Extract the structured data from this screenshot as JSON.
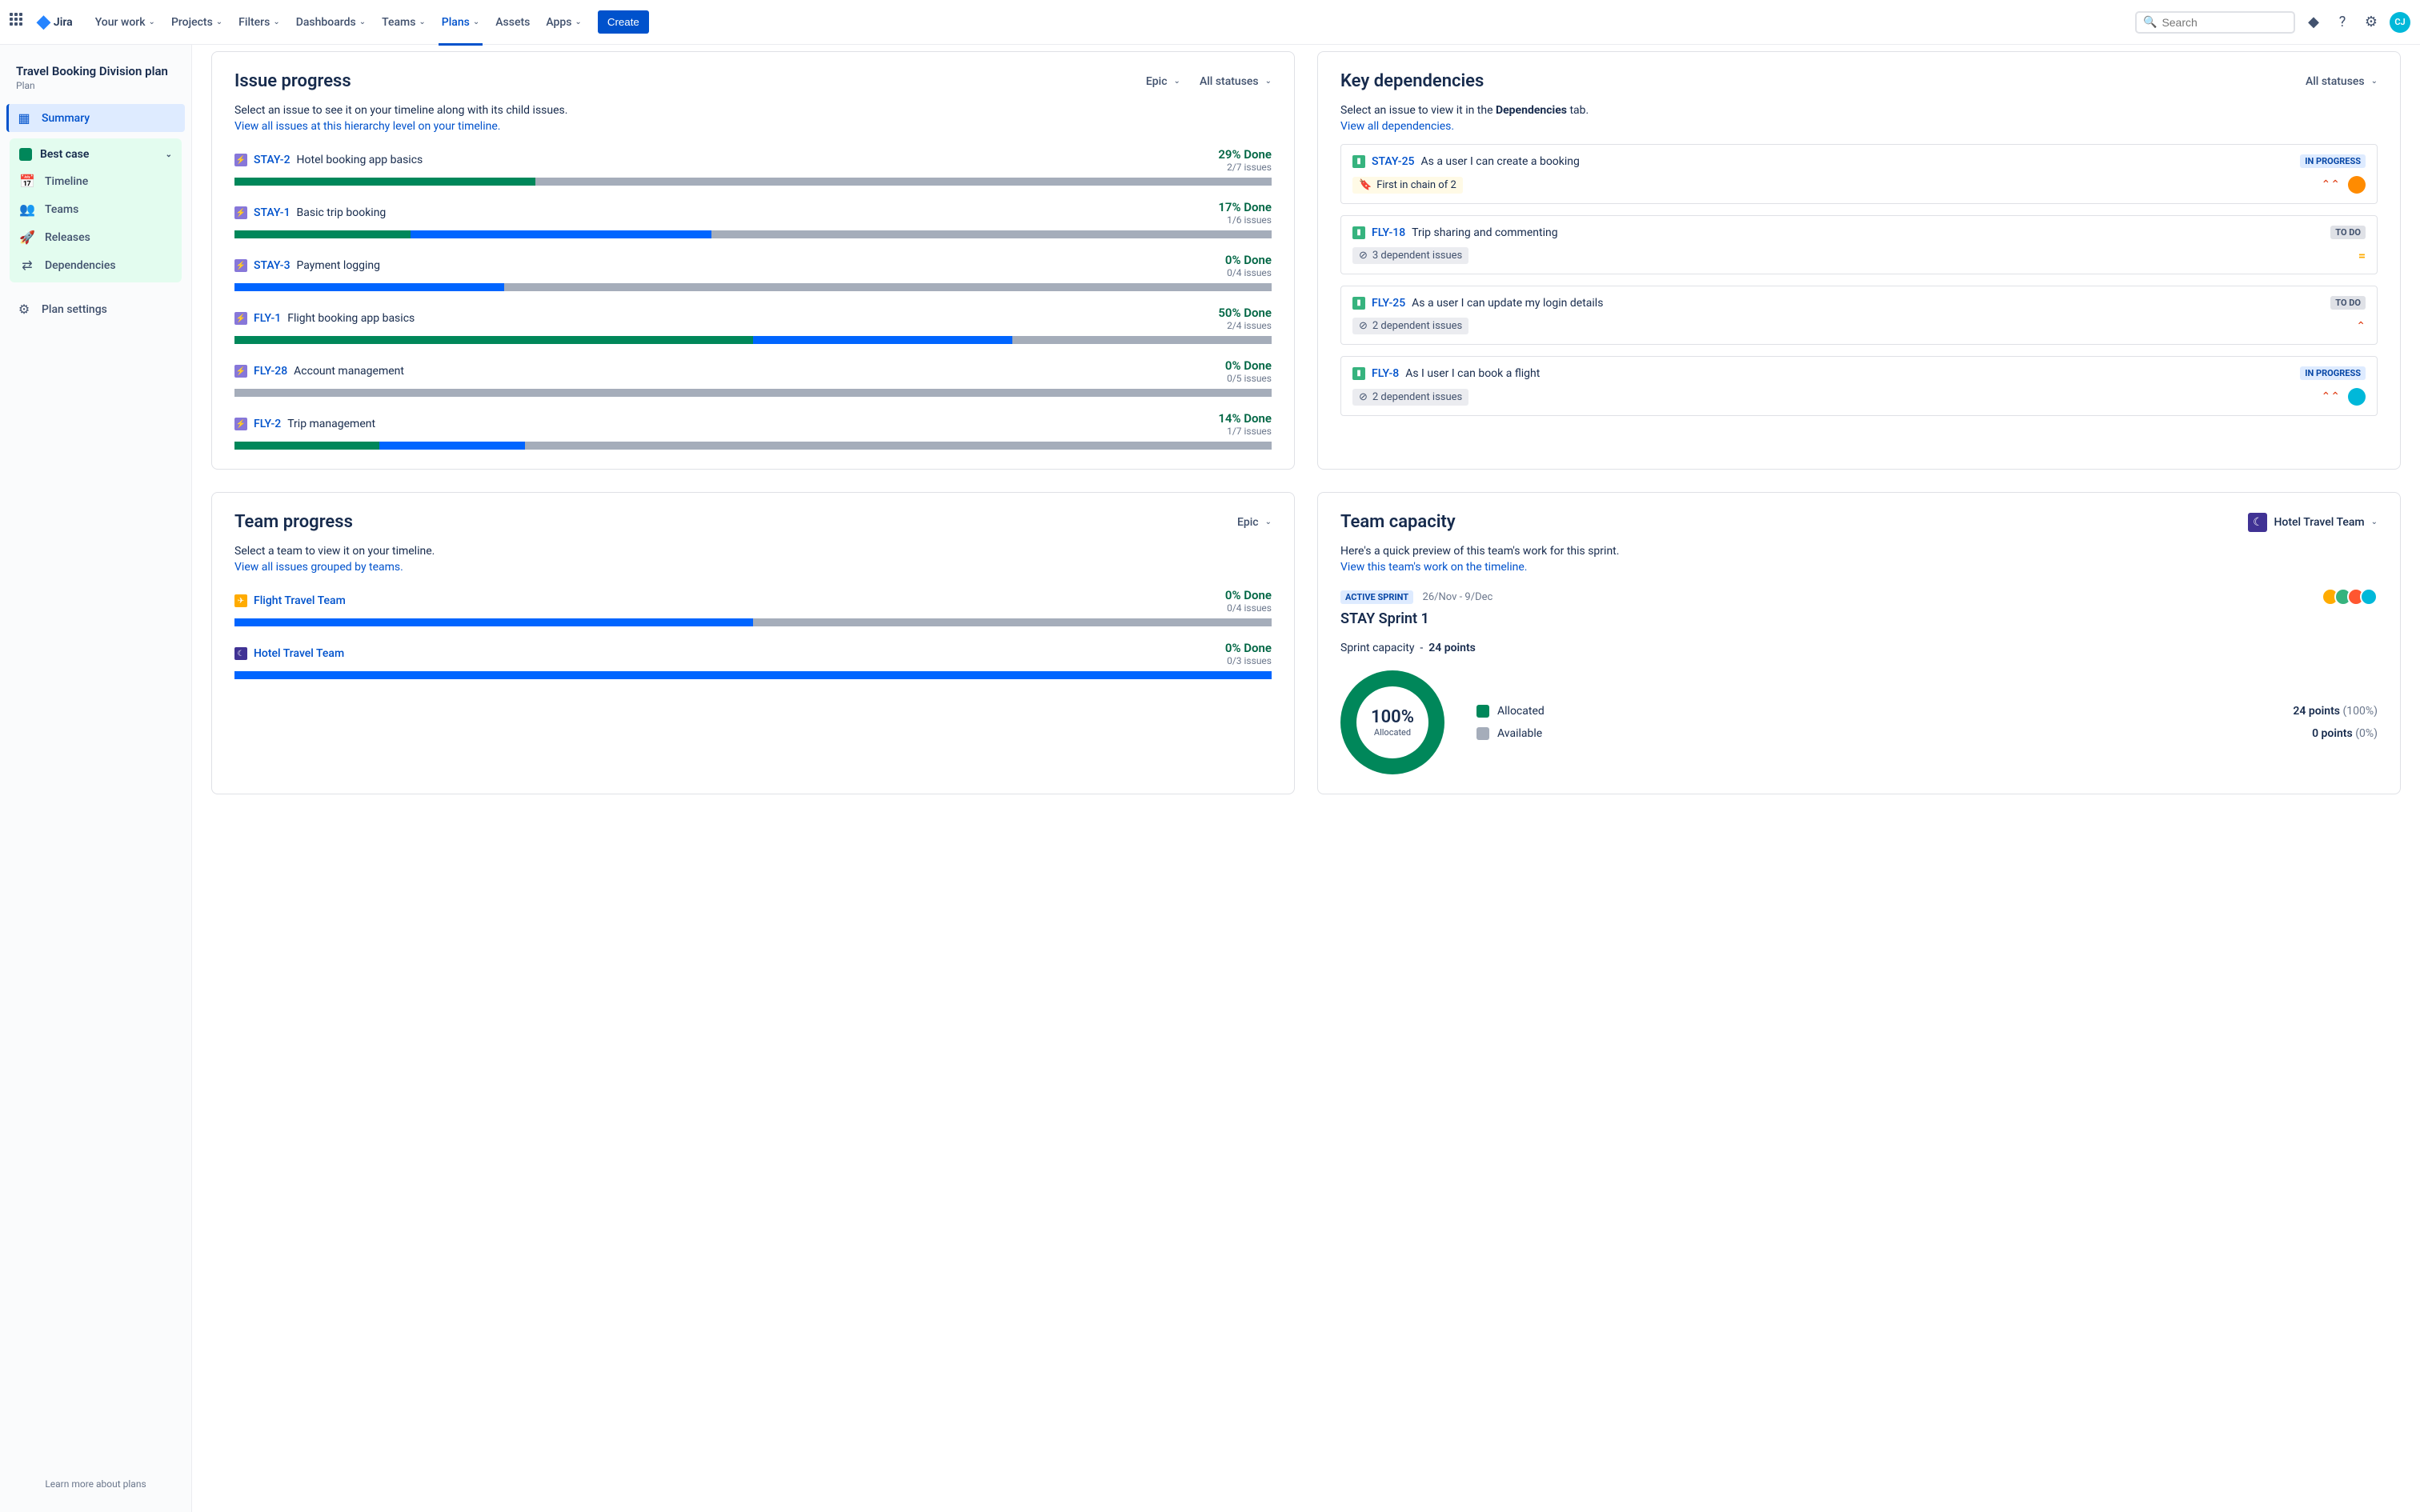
{
  "nav": {
    "product": "Jira",
    "items": [
      "Your work",
      "Projects",
      "Filters",
      "Dashboards",
      "Teams",
      "Plans",
      "Assets",
      "Apps"
    ],
    "activeIndex": 5,
    "plainIndex": 6,
    "create": "Create",
    "searchPlaceholder": "Search",
    "avatarInitials": "CJ"
  },
  "sidebar": {
    "planTitle": "Travel Booking Division plan",
    "planSub": "Plan",
    "summary": "Summary",
    "scenario": "Best case",
    "items": [
      "Timeline",
      "Teams",
      "Releases",
      "Dependencies"
    ],
    "settings": "Plan settings",
    "footer": "Learn more about plans"
  },
  "issueProgress": {
    "title": "Issue progress",
    "filterLevel": "Epic",
    "filterStatus": "All statuses",
    "desc": "Select an issue to see it on your timeline along with its child issues.",
    "link": "View all issues at this hierarchy level on your timeline.",
    "issues": [
      {
        "key": "STAY-2",
        "title": "Hotel booking app basics",
        "pct": "29% Done",
        "count": "2/7 issues",
        "green": 29,
        "blue": 0
      },
      {
        "key": "STAY-1",
        "title": "Basic trip booking",
        "pct": "17% Done",
        "count": "1/6 issues",
        "green": 17,
        "blue": 29
      },
      {
        "key": "STAY-3",
        "title": "Payment logging",
        "pct": "0% Done",
        "count": "0/4 issues",
        "green": 0,
        "blue": 26
      },
      {
        "key": "FLY-1",
        "title": "Flight booking app basics",
        "pct": "50% Done",
        "count": "2/4 issues",
        "green": 50,
        "blue": 25
      },
      {
        "key": "FLY-28",
        "title": "Account management",
        "pct": "0% Done",
        "count": "0/5 issues",
        "green": 0,
        "blue": 0
      },
      {
        "key": "FLY-2",
        "title": "Trip management",
        "pct": "14% Done",
        "count": "1/7 issues",
        "green": 14,
        "blue": 14
      }
    ]
  },
  "deps": {
    "title": "Key dependencies",
    "filterStatus": "All statuses",
    "descPrefix": "Select an issue to view it in the ",
    "descBold": "Dependencies",
    "descSuffix": " tab.",
    "link": "View all dependencies.",
    "items": [
      {
        "key": "STAY-25",
        "title": "As a user I can create a booking",
        "status": "IN PROGRESS",
        "statusClass": "lz-inprogress",
        "badge": "First in chain of 2",
        "badgeFirst": true,
        "prio": "highest",
        "avatar": "#FF8B00"
      },
      {
        "key": "FLY-18",
        "title": "Trip sharing and commenting",
        "status": "TO DO",
        "statusClass": "lz-todo",
        "badge": "3 dependent issues",
        "badgeFirst": false,
        "prio": "medium",
        "avatar": null
      },
      {
        "key": "FLY-25",
        "title": "As a user I can update my login details",
        "status": "TO DO",
        "statusClass": "lz-todo",
        "badge": "2 dependent issues",
        "badgeFirst": false,
        "prio": "high",
        "avatar": null
      },
      {
        "key": "FLY-8",
        "title": "As I user I can book a flight",
        "status": "IN PROGRESS",
        "statusClass": "lz-inprogress",
        "badge": "2 dependent issues",
        "badgeFirst": false,
        "prio": "highest",
        "avatar": "#00B8D9"
      }
    ]
  },
  "teamProgress": {
    "title": "Team progress",
    "filterLevel": "Epic",
    "desc": "Select a team to view it on your timeline.",
    "link": "View all issues grouped by teams.",
    "teams": [
      {
        "name": "Flight Travel Team",
        "pct": "0% Done",
        "count": "0/4 issues",
        "blue": 50,
        "icon": "✈",
        "bg": "#FFAB00"
      },
      {
        "name": "Hotel Travel Team",
        "pct": "0% Done",
        "count": "0/3 issues",
        "blue": 100,
        "icon": "☾",
        "bg": "#403294"
      }
    ]
  },
  "capacity": {
    "title": "Team capacity",
    "teamName": "Hotel Travel Team",
    "teamIcon": "☾",
    "teamBg": "#403294",
    "desc": "Here's a quick preview of this team's work for this sprint.",
    "link": "View this team's work on the timeline.",
    "sprintBadge": "ACTIVE SPRINT",
    "sprintDates": "26/Nov - 9/Dec",
    "sprintName": "STAY Sprint 1",
    "capacityLabel": "Sprint capacity",
    "capacitySep": "-",
    "capacityValue": "24 points",
    "donutPct": "100%",
    "donutLabel": "Allocated",
    "avatarColors": [
      "#FFAB00",
      "#36B37E",
      "#FF5630",
      "#00B8D9"
    ],
    "legend": [
      {
        "label": "Allocated",
        "color": "#00875A",
        "points": "24 points",
        "pct": "(100%)"
      },
      {
        "label": "Available",
        "color": "#A5ADBA",
        "points": "0 points",
        "pct": "(0%)"
      }
    ]
  }
}
